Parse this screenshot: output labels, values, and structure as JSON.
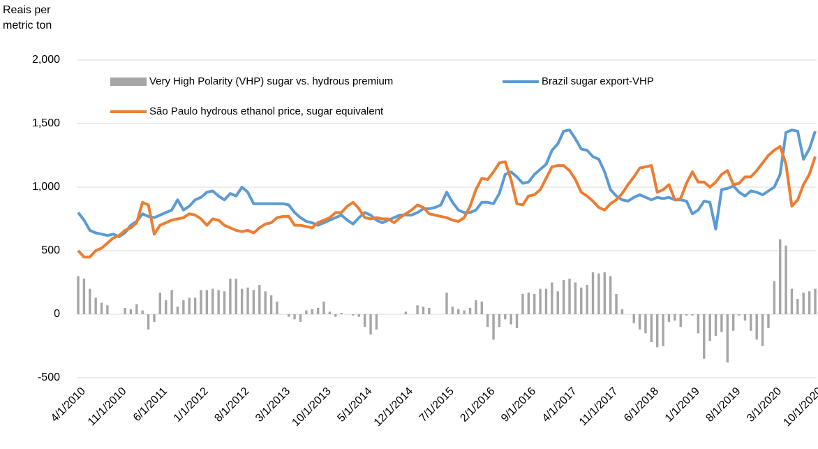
{
  "chart_data": {
    "type": "bar-line",
    "ylabel_lines": [
      "Reais per",
      "metric ton"
    ],
    "categories": [
      "4/1/2010",
      null,
      null,
      null,
      null,
      null,
      null,
      "11/1/2010",
      null,
      null,
      null,
      null,
      null,
      null,
      "6/1/2011",
      null,
      null,
      null,
      null,
      null,
      null,
      "1/1/2012",
      null,
      null,
      null,
      null,
      null,
      null,
      "8/1/2012",
      null,
      null,
      null,
      null,
      null,
      null,
      "3/1/2013",
      null,
      null,
      null,
      null,
      null,
      null,
      "10/1/2013",
      null,
      null,
      null,
      null,
      null,
      null,
      "5/1/2014",
      null,
      null,
      null,
      null,
      null,
      null,
      "12/1/2014",
      null,
      null,
      null,
      null,
      null,
      null,
      "7/1/2015",
      null,
      null,
      null,
      null,
      null,
      null,
      "2/1/2016",
      null,
      null,
      null,
      null,
      null,
      null,
      "9/1/2016",
      null,
      null,
      null,
      null,
      null,
      null,
      "4/1/2017",
      null,
      null,
      null,
      null,
      null,
      null,
      "11/1/2017",
      null,
      null,
      null,
      null,
      null,
      null,
      "6/1/2018",
      null,
      null,
      null,
      null,
      null,
      null,
      "1/1/2019",
      null,
      null,
      null,
      null,
      null,
      null,
      "8/1/2019",
      null,
      null,
      null,
      null,
      null,
      null,
      "3/1/2020",
      null,
      null,
      null,
      null,
      null,
      null,
      "10/1/2020"
    ],
    "series": [
      {
        "name": "Very High Polarity (VHP) sugar vs. hydrous premium",
        "kind": "bar",
        "color": "#a6a6a6",
        "values": [
          300,
          280,
          200,
          130,
          90,
          70,
          0,
          0,
          50,
          40,
          80,
          30,
          -120,
          -60,
          170,
          110,
          190,
          60,
          110,
          130,
          130,
          190,
          190,
          200,
          190,
          180,
          280,
          280,
          200,
          210,
          190,
          230,
          180,
          150,
          100,
          0,
          -20,
          -40,
          -60,
          30,
          40,
          50,
          100,
          20,
          -20,
          10,
          0,
          -10,
          -20,
          -100,
          -160,
          -120,
          0,
          0,
          0,
          0,
          20,
          0,
          70,
          60,
          50,
          0,
          0,
          170,
          60,
          40,
          30,
          50,
          110,
          100,
          -100,
          -200,
          -100,
          -40,
          -80,
          -110,
          160,
          170,
          160,
          200,
          200,
          250,
          180,
          270,
          280,
          250,
          210,
          230,
          330,
          320,
          330,
          300,
          160,
          40,
          0,
          -70,
          -120,
          -150,
          -220,
          -260,
          -250,
          -60,
          -50,
          -100,
          -10,
          -10,
          -150,
          -350,
          -210,
          -170,
          -140,
          -380,
          -130,
          -10,
          -50,
          -130,
          -200,
          -250,
          -110,
          260,
          590,
          540,
          200,
          120,
          170,
          180,
          200
        ]
      },
      {
        "name": "Brazil sugar export-VHP",
        "kind": "line",
        "color": "#5b9bd5",
        "values": [
          800,
          740,
          660,
          640,
          630,
          620,
          630,
          610,
          640,
          700,
          730,
          790,
          770,
          760,
          780,
          800,
          820,
          900,
          820,
          850,
          900,
          920,
          960,
          970,
          930,
          900,
          950,
          930,
          1000,
          960,
          870,
          870,
          870,
          870,
          870,
          870,
          860,
          800,
          760,
          730,
          720,
          700,
          720,
          740,
          760,
          780,
          740,
          710,
          760,
          800,
          780,
          740,
          720,
          740,
          760,
          780,
          780,
          780,
          800,
          830,
          830,
          840,
          860,
          960,
          880,
          820,
          800,
          800,
          820,
          880,
          880,
          870,
          950,
          1100,
          1120,
          1080,
          1030,
          1040,
          1100,
          1140,
          1180,
          1290,
          1340,
          1440,
          1450,
          1380,
          1300,
          1290,
          1240,
          1220,
          1120,
          980,
          930,
          900,
          890,
          920,
          940,
          920,
          900,
          920,
          910,
          920,
          900,
          900,
          890,
          790,
          820,
          890,
          880,
          670,
          980,
          990,
          1010,
          960,
          930,
          970,
          960,
          940,
          970,
          1000,
          1100,
          1430,
          1450,
          1440,
          1220,
          1300,
          1440
        ]
      },
      {
        "name": "São Paulo hydrous ethanol price, sugar equivalent",
        "kind": "line",
        "color": "#ed7d31",
        "values": [
          500,
          450,
          450,
          500,
          520,
          560,
          600,
          620,
          660,
          680,
          720,
          880,
          860,
          630,
          700,
          720,
          740,
          750,
          760,
          790,
          780,
          750,
          700,
          750,
          740,
          700,
          680,
          660,
          650,
          660,
          640,
          680,
          710,
          720,
          760,
          770,
          770,
          700,
          700,
          690,
          680,
          720,
          740,
          760,
          800,
          800,
          850,
          880,
          830,
          760,
          750,
          760,
          750,
          750,
          720,
          760,
          790,
          820,
          860,
          840,
          790,
          780,
          770,
          760,
          740,
          730,
          760,
          850,
          980,
          1070,
          1060,
          1120,
          1190,
          1200,
          1060,
          870,
          860,
          930,
          940,
          980,
          1070,
          1160,
          1170,
          1170,
          1130,
          1060,
          960,
          930,
          890,
          840,
          820,
          870,
          900,
          950,
          1020,
          1080,
          1150,
          1160,
          1170,
          960,
          980,
          1020,
          900,
          910,
          1030,
          1120,
          1040,
          1040,
          1000,
          1040,
          1100,
          1130,
          1020,
          1030,
          1080,
          1080,
          1130,
          1190,
          1250,
          1290,
          1320,
          1180,
          850,
          900,
          1020,
          1100,
          1240
        ]
      }
    ],
    "ylim": [
      -500,
      2000
    ],
    "yticks": [
      {
        "value": 2000,
        "label": "2,000"
      },
      {
        "value": 1500,
        "label": "1,500"
      },
      {
        "value": 1000,
        "label": "1,000"
      },
      500,
      0,
      -500
    ],
    "grid": true
  }
}
